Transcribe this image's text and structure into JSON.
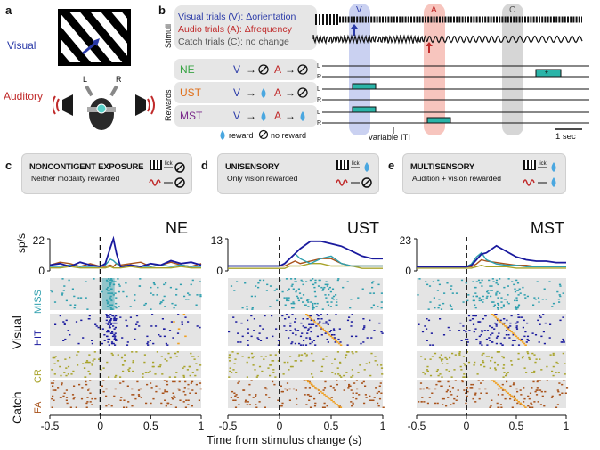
{
  "panel_a": {
    "label": "a",
    "visual_label": "Visual",
    "auditory_label": "Auditory",
    "L": "L",
    "R": "R"
  },
  "panel_b": {
    "label": "b",
    "stimuli_label": "Stimuli",
    "rewards_label": "Rewards",
    "trial_v": "Visual trials (V): Δorientation",
    "trial_a": "Audio trials (A): Δfrequency",
    "trial_c": "Catch trials (C): no change",
    "col_v": "V",
    "col_a": "A",
    "col_c": "C",
    "rows": [
      {
        "name": "NE",
        "color": "#3aa546"
      },
      {
        "name": "UST",
        "color": "#e0701b"
      },
      {
        "name": "MST",
        "color": "#7b2a8c"
      }
    ],
    "reward_text": "reward",
    "noreward_text": "no reward",
    "iti_text": "variable ITI",
    "scale_text": "1 sec",
    "lick_L": "L",
    "lick_R": "R"
  },
  "panel_c": {
    "label": "c",
    "title": "NONCONTIGENT EXPOSURE",
    "subtitle": "Neither modality rewarded",
    "lick": "lick"
  },
  "panel_d": {
    "label": "d",
    "title": "UNISENSORY",
    "subtitle": "Only vision rewarded",
    "lick": "lick"
  },
  "panel_e": {
    "label": "e",
    "title": "MULTISENSORY",
    "subtitle": "Audition + vision rewarded",
    "lick": "lick"
  },
  "raster": {
    "sp_label": "sp/s",
    "visual_label": "Visual",
    "catch_label": "Catch",
    "miss": "MISS",
    "hit": "HIT",
    "cr": "CR",
    "fa": "FA",
    "xlabel": "Time from stimulus change (s)",
    "colors": {
      "miss": "#2e9fae",
      "hit": "#1a1a9e",
      "cr": "#a8a32a",
      "fa": "#a8521a",
      "lick": "#f0a020"
    }
  },
  "chart_data": [
    {
      "type": "line",
      "title": "NE",
      "xlim": [
        -0.5,
        1
      ],
      "ylim": [
        0,
        22
      ],
      "yticks": [
        "0",
        "22"
      ],
      "xticks": [
        "-0.5",
        "0",
        "0.5",
        "1"
      ],
      "x": [
        -0.5,
        -0.4,
        -0.3,
        -0.2,
        -0.1,
        0,
        0.05,
        0.1,
        0.13,
        0.16,
        0.2,
        0.3,
        0.4,
        0.5,
        0.6,
        0.7,
        0.8,
        0.9,
        1.0
      ],
      "series": [
        {
          "name": "HIT",
          "color": "#1a1a9e",
          "values": [
            4,
            5,
            3,
            6,
            4,
            3,
            5,
            16,
            22,
            12,
            3,
            4,
            3,
            5,
            4,
            7,
            5,
            6,
            4
          ]
        },
        {
          "name": "MISS",
          "color": "#2e9fae",
          "values": [
            3,
            3,
            4,
            3,
            3,
            3,
            4,
            8,
            7,
            5,
            3,
            4,
            3,
            3,
            4,
            3,
            4,
            3,
            3
          ]
        },
        {
          "name": "CR",
          "color": "#a8a32a",
          "values": [
            2,
            2,
            3,
            2,
            2,
            2,
            2,
            3,
            2,
            2,
            2,
            3,
            2,
            2,
            2,
            2,
            3,
            2,
            2
          ]
        },
        {
          "name": "FA",
          "color": "#a8521a",
          "values": [
            4,
            6,
            5,
            3,
            5,
            3,
            3,
            4,
            3,
            5,
            4,
            5,
            6,
            3,
            4,
            6,
            4,
            3,
            5
          ]
        }
      ]
    },
    {
      "type": "line",
      "title": "UST",
      "xlim": [
        -0.5,
        1
      ],
      "ylim": [
        0,
        13
      ],
      "yticks": [
        "0",
        "13"
      ],
      "xticks": [
        "-0.5",
        "0",
        "0.5",
        "1"
      ],
      "x": [
        -0.5,
        -0.4,
        -0.3,
        -0.2,
        -0.1,
        0,
        0.05,
        0.1,
        0.15,
        0.2,
        0.3,
        0.4,
        0.5,
        0.6,
        0.7,
        0.8,
        0.9,
        1.0
      ],
      "series": [
        {
          "name": "HIT",
          "color": "#1a1a9e",
          "values": [
            2,
            2,
            2,
            2,
            2,
            2,
            3,
            5,
            7,
            9,
            12,
            12,
            11,
            10,
            8,
            6,
            5,
            5
          ]
        },
        {
          "name": "MISS",
          "color": "#2e9fae",
          "values": [
            2,
            2,
            2,
            2,
            2,
            2,
            3,
            5,
            7,
            5,
            3,
            5,
            6,
            3,
            2,
            2,
            2,
            2
          ]
        },
        {
          "name": "CR",
          "color": "#a8a32a",
          "values": [
            1,
            1,
            1,
            1,
            1,
            1,
            1,
            2,
            2,
            2,
            3,
            3,
            2,
            2,
            2,
            1,
            1,
            1
          ]
        },
        {
          "name": "FA",
          "color": "#a8521a",
          "values": [
            2,
            2,
            2,
            2,
            2,
            2,
            2,
            3,
            4,
            3,
            4,
            5,
            5,
            3,
            2,
            2,
            2,
            2
          ]
        }
      ]
    },
    {
      "type": "line",
      "title": "MST",
      "xlim": [
        -0.5,
        1
      ],
      "ylim": [
        0,
        23
      ],
      "yticks": [
        "0",
        "23"
      ],
      "xticks": [
        "-0.5",
        "0",
        "0.5",
        "1"
      ],
      "x": [
        -0.5,
        -0.4,
        -0.3,
        -0.2,
        -0.1,
        0,
        0.05,
        0.1,
        0.15,
        0.2,
        0.3,
        0.4,
        0.5,
        0.6,
        0.7,
        0.8,
        0.9,
        1.0
      ],
      "series": [
        {
          "name": "HIT",
          "color": "#1a1a9e",
          "values": [
            3,
            3,
            3,
            3,
            3,
            3,
            4,
            8,
            12,
            13,
            18,
            14,
            10,
            8,
            7,
            7,
            6,
            6
          ]
        },
        {
          "name": "MISS",
          "color": "#2e9fae",
          "values": [
            3,
            3,
            3,
            3,
            3,
            3,
            5,
            10,
            13,
            8,
            5,
            4,
            4,
            3,
            3,
            3,
            3,
            3
          ]
        },
        {
          "name": "CR",
          "color": "#a8a32a",
          "values": [
            2,
            2,
            2,
            2,
            2,
            2,
            2,
            3,
            4,
            3,
            3,
            3,
            2,
            2,
            2,
            2,
            2,
            2
          ]
        },
        {
          "name": "FA",
          "color": "#a8521a",
          "values": [
            3,
            3,
            3,
            3,
            3,
            3,
            3,
            5,
            8,
            7,
            6,
            5,
            4,
            4,
            3,
            3,
            3,
            3
          ]
        }
      ]
    }
  ]
}
